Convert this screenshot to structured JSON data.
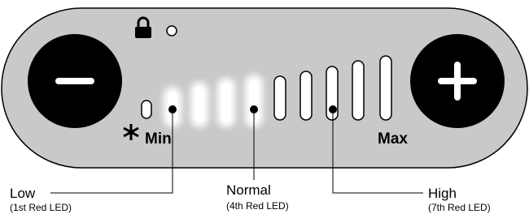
{
  "panel": {
    "min_label": "Min",
    "max_label": "Max"
  },
  "callouts": [
    {
      "label": "Low",
      "note": "(1st Red LED)"
    },
    {
      "label": "Normal",
      "note": "(4th Red LED)"
    },
    {
      "label": "High",
      "note": "(7th Red LED)"
    }
  ]
}
